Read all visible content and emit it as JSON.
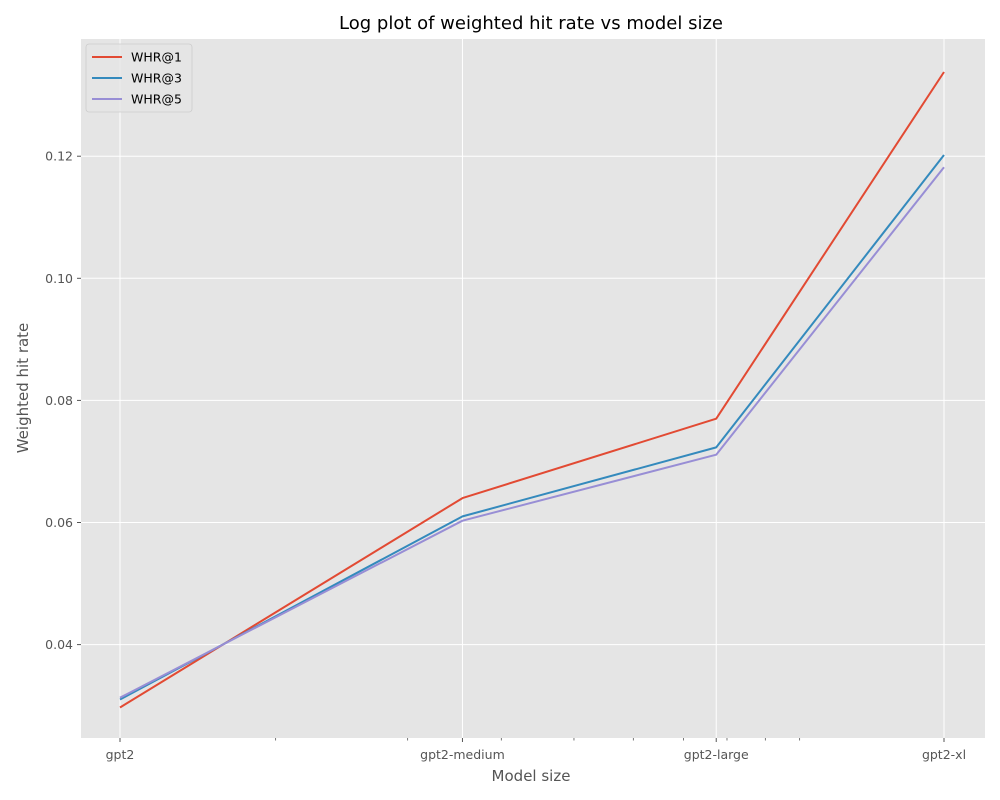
{
  "chart_data": {
    "type": "line",
    "title": "Log plot of weighted hit rate vs model size",
    "xlabel": "Model size",
    "ylabel": "Weighted hit rate",
    "x_scale": "log",
    "x_param_millions": [
      124,
      355,
      774,
      1558
    ],
    "categories": [
      "gpt2",
      "gpt2-medium",
      "gpt2-large",
      "gpt2-xl"
    ],
    "yticks": [
      0.04,
      0.06,
      0.08,
      0.1,
      0.12
    ],
    "ytick_labels": [
      "0.04",
      "0.06",
      "0.08",
      "0.10",
      "0.12"
    ],
    "ylim": [
      0.0247,
      0.1392
    ],
    "grid": true,
    "legend_position": "top-left",
    "series": [
      {
        "name": "WHR@1",
        "color": "#E24A33",
        "values": [
          0.0297,
          0.064,
          0.077,
          0.1338
        ]
      },
      {
        "name": "WHR@3",
        "color": "#348ABD",
        "values": [
          0.031,
          0.061,
          0.0723,
          0.1202
        ]
      },
      {
        "name": "WHR@5",
        "color": "#988ED5",
        "values": [
          0.0313,
          0.0603,
          0.0711,
          0.1182
        ]
      }
    ]
  }
}
